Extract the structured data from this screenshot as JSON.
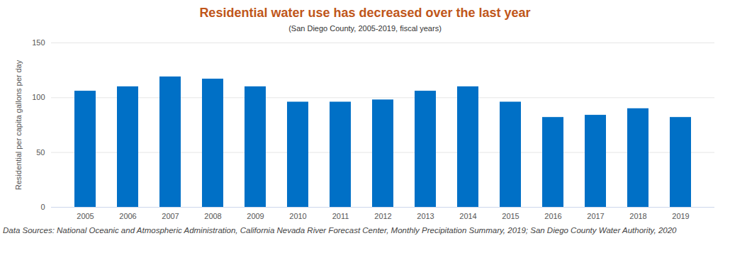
{
  "chart_data": {
    "type": "bar",
    "title": "Residential water use has decreased over the last year",
    "subtitle": "(San Diego County, 2005-2019, fiscal years)",
    "y_label": "Residential per capita gallons per day",
    "caption": "Data Sources: National Oceanic and Atmospheric Administration, California Nevada River Forecast Center, Monthly Precipitation Summary, 2019; San Diego County Water Authority, 2020",
    "categories": [
      "2005",
      "2006",
      "2007",
      "2008",
      "2009",
      "2010",
      "2011",
      "2012",
      "2013",
      "2014",
      "2015",
      "2016",
      "2017",
      "2018",
      "2019"
    ],
    "values": [
      106,
      110,
      119,
      117,
      110,
      96,
      96,
      98,
      106,
      110,
      96,
      82,
      84,
      90,
      82
    ],
    "color": "#0070c6",
    "ylim": [
      0,
      150
    ],
    "yticks": [
      0,
      50,
      100,
      150
    ],
    "grid": true
  }
}
